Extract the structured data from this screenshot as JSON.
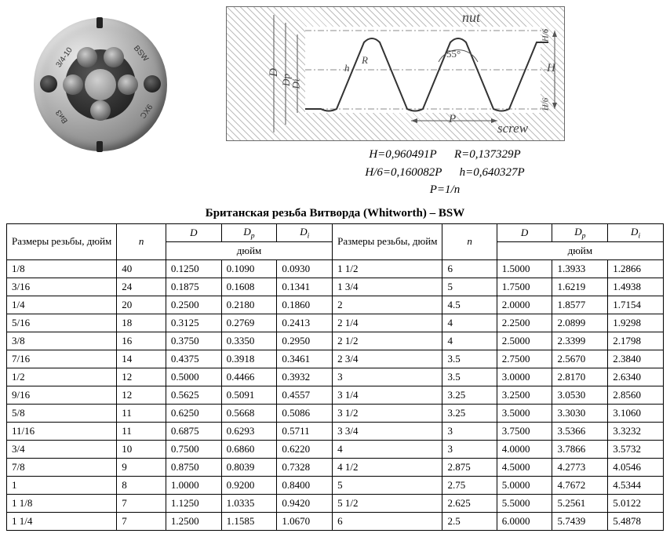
{
  "die": {
    "marking_size": "3/4-10",
    "marking_std": "BSW",
    "marking_steel": "9XC",
    "marking_maker": "ВиЗ"
  },
  "diagram": {
    "label_nut": "nut",
    "label_screw": "screw",
    "label_angle": "55°",
    "label_P": "P",
    "label_D": "D",
    "label_Dp": "Dp",
    "label_Di": "Di",
    "label_H": "H",
    "label_h": "h",
    "label_R": "R",
    "label_h6t": "H/6",
    "label_h6b": "H/6"
  },
  "formulas": {
    "line1a": "H=0,960491P",
    "line1b": "R=0,137329P",
    "line2a": "H/6=0,160082P",
    "line2b": "h=0,640327P",
    "line3": "P=1/n"
  },
  "table": {
    "title": "Британская резьба Витворда (Whitworth) – BSW",
    "headers": {
      "size": "Размеры резьбы, дюйм",
      "n": "n",
      "D": "D",
      "Dp": "Dₚ",
      "Di": "Dᵢ",
      "inch": "дюйм"
    },
    "left": [
      {
        "size": "1/8",
        "n": "40",
        "D": "0.1250",
        "Dp": "0.1090",
        "Di": "0.0930"
      },
      {
        "size": "3/16",
        "n": "24",
        "D": "0.1875",
        "Dp": "0.1608",
        "Di": "0.1341"
      },
      {
        "size": "1/4",
        "n": "20",
        "D": "0.2500",
        "Dp": "0.2180",
        "Di": "0.1860"
      },
      {
        "size": "5/16",
        "n": "18",
        "D": "0.3125",
        "Dp": "0.2769",
        "Di": "0.2413"
      },
      {
        "size": "3/8",
        "n": "16",
        "D": "0.3750",
        "Dp": "0.3350",
        "Di": "0.2950"
      },
      {
        "size": "7/16",
        "n": "14",
        "D": "0.4375",
        "Dp": "0.3918",
        "Di": "0.3461"
      },
      {
        "size": "1/2",
        "n": "12",
        "D": "0.5000",
        "Dp": "0.4466",
        "Di": "0.3932"
      },
      {
        "size": "9/16",
        "n": "12",
        "D": "0.5625",
        "Dp": "0.5091",
        "Di": "0.4557"
      },
      {
        "size": "5/8",
        "n": "11",
        "D": "0.6250",
        "Dp": "0.5668",
        "Di": "0.5086"
      },
      {
        "size": "11/16",
        "n": "11",
        "D": "0.6875",
        "Dp": "0.6293",
        "Di": "0.5711"
      },
      {
        "size": "3/4",
        "n": "10",
        "D": "0.7500",
        "Dp": "0.6860",
        "Di": "0.6220"
      },
      {
        "size": "7/8",
        "n": "9",
        "D": "0.8750",
        "Dp": "0.8039",
        "Di": "0.7328"
      },
      {
        "size": "1",
        "n": "8",
        "D": "1.0000",
        "Dp": "0.9200",
        "Di": "0.8400"
      },
      {
        "size": "1 1/8",
        "n": "7",
        "D": "1.1250",
        "Dp": "1.0335",
        "Di": "0.9420"
      },
      {
        "size": "1 1/4",
        "n": "7",
        "D": "1.2500",
        "Dp": "1.1585",
        "Di": "1.0670"
      }
    ],
    "right": [
      {
        "size": "1 1/2",
        "n": "6",
        "D": "1.5000",
        "Dp": "1.3933",
        "Di": "1.2866"
      },
      {
        "size": "1 3/4",
        "n": "5",
        "D": "1.7500",
        "Dp": "1.6219",
        "Di": "1.4938"
      },
      {
        "size": "2",
        "n": "4.5",
        "D": "2.0000",
        "Dp": "1.8577",
        "Di": "1.7154"
      },
      {
        "size": "2 1/4",
        "n": "4",
        "D": "2.2500",
        "Dp": "2.0899",
        "Di": "1.9298"
      },
      {
        "size": "2 1/2",
        "n": "4",
        "D": "2.5000",
        "Dp": "2.3399",
        "Di": "2.1798"
      },
      {
        "size": "2 3/4",
        "n": "3.5",
        "D": "2.7500",
        "Dp": "2.5670",
        "Di": "2.3840"
      },
      {
        "size": "3",
        "n": "3.5",
        "D": "3.0000",
        "Dp": "2.8170",
        "Di": "2.6340"
      },
      {
        "size": "3 1/4",
        "n": "3.25",
        "D": "3.2500",
        "Dp": "3.0530",
        "Di": "2.8560"
      },
      {
        "size": "3 1/2",
        "n": "3.25",
        "D": "3.5000",
        "Dp": "3.3030",
        "Di": "3.1060"
      },
      {
        "size": "3 3/4",
        "n": "3",
        "D": "3.7500",
        "Dp": "3.5366",
        "Di": "3.3232"
      },
      {
        "size": "4",
        "n": "3",
        "D": "4.0000",
        "Dp": "3.7866",
        "Di": "3.5732"
      },
      {
        "size": "4 1/2",
        "n": "2.875",
        "D": "4.5000",
        "Dp": "4.2773",
        "Di": "4.0546"
      },
      {
        "size": "5",
        "n": "2.75",
        "D": "5.0000",
        "Dp": "4.7672",
        "Di": "4.5344"
      },
      {
        "size": "5 1/2",
        "n": "2.625",
        "D": "5.5000",
        "Dp": "5.2561",
        "Di": "5.0122"
      },
      {
        "size": "6",
        "n": "2.5",
        "D": "6.0000",
        "Dp": "5.7439",
        "Di": "5.4878"
      }
    ]
  }
}
